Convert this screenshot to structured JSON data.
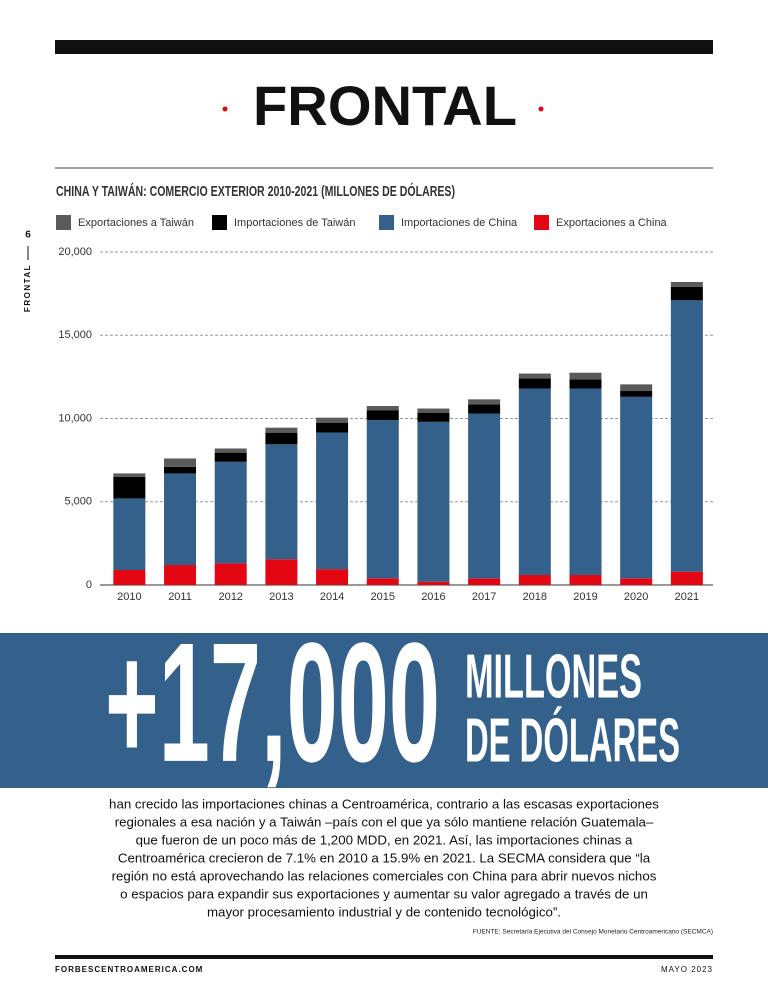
{
  "header": {
    "section": "FRONTAL"
  },
  "side": {
    "page": "6",
    "section": "FRONTAL"
  },
  "chart_data": {
    "type": "stacked_bar",
    "title": "CHINA Y TAIWÁN: COMERCIO EXTERIOR 2010-2021 (MILLONES DE DÓLARES)",
    "categories": [
      "2010",
      "2011",
      "2012",
      "2013",
      "2014",
      "2015",
      "2016",
      "2017",
      "2018",
      "2019",
      "2020",
      "2021"
    ],
    "series": [
      {
        "name": "Exportaciones a Taiwán",
        "color": "#5a5a5a",
        "values": [
          200,
          500,
          250,
          300,
          300,
          250,
          250,
          300,
          300,
          400,
          400,
          300
        ]
      },
      {
        "name": "Importaciones de Taiwán",
        "color": "#000000",
        "values": [
          1300,
          400,
          550,
          700,
          600,
          600,
          550,
          550,
          600,
          550,
          350,
          800
        ]
      },
      {
        "name": "Importaciones de China",
        "color": "#33618c",
        "values": [
          4300,
          5500,
          6100,
          6900,
          8200,
          9500,
          9600,
          9900,
          11200,
          11200,
          10900,
          16300
        ]
      },
      {
        "name": "Exportaciones a China",
        "color": "#e30613",
        "values": [
          900,
          1200,
          1300,
          1550,
          950,
          400,
          200,
          400,
          600,
          600,
          400,
          800
        ]
      }
    ],
    "ylim": [
      0,
      20000
    ],
    "yticks": [
      0,
      {
        "value": 5000,
        "label": "5,000"
      },
      {
        "value": 10000,
        "label": "10,000"
      },
      {
        "value": 15000,
        "label": "15,000"
      },
      {
        "value": 20000,
        "label": "20,000"
      }
    ],
    "grid": true
  },
  "highlight": {
    "number": "+17,000",
    "unit_lines": [
      "MILLONES",
      "DE DÓLARES"
    ]
  },
  "body": {
    "lines": [
      "han crecido las importaciones chinas a Centroamérica, contrario a las escasas exportaciones",
      "regionales a esa nación y a Taiwán –país con el que ya sólo mantiene relación Guatemala–",
      "que fueron de un poco más de 1,200 MDD, en 2021. Así, las importaciones chinas a",
      "Centroamérica crecieron de 7.1% en 2010 a 15.9% en 2021. La SECMA considera que “la",
      "región no está aprovechando las relaciones comerciales con China para abrir nuevos nichos",
      "o espacios para expandir sus exportaciones y aumentar su valor agregado a través de un",
      "mayor procesamiento industrial y de contenido tecnológico”."
    ]
  },
  "source": "FUENTE:  Secretaría Ejecutiva del Consejo Monetario Centroamericano (SECMCA)",
  "footer": {
    "left": "FORBESCENTROAMERICA.COM",
    "right": "MAYO 2023"
  }
}
